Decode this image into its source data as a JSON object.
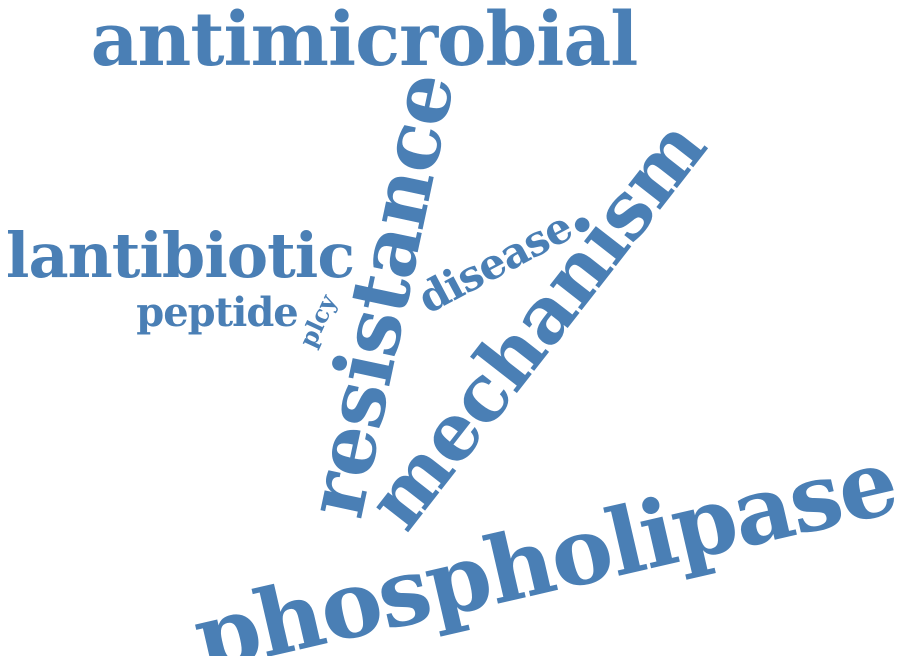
{
  "accent_color": "#4a7fb5",
  "words": {
    "antimicrobial": "antimicrobial",
    "resistance": "resistance",
    "mechanism": "mechanism",
    "lantibiotic": "lantibiotic",
    "peptide": "peptide",
    "plcy": "plcy",
    "disease": "disease",
    "phospholipase": "phospholipase"
  }
}
